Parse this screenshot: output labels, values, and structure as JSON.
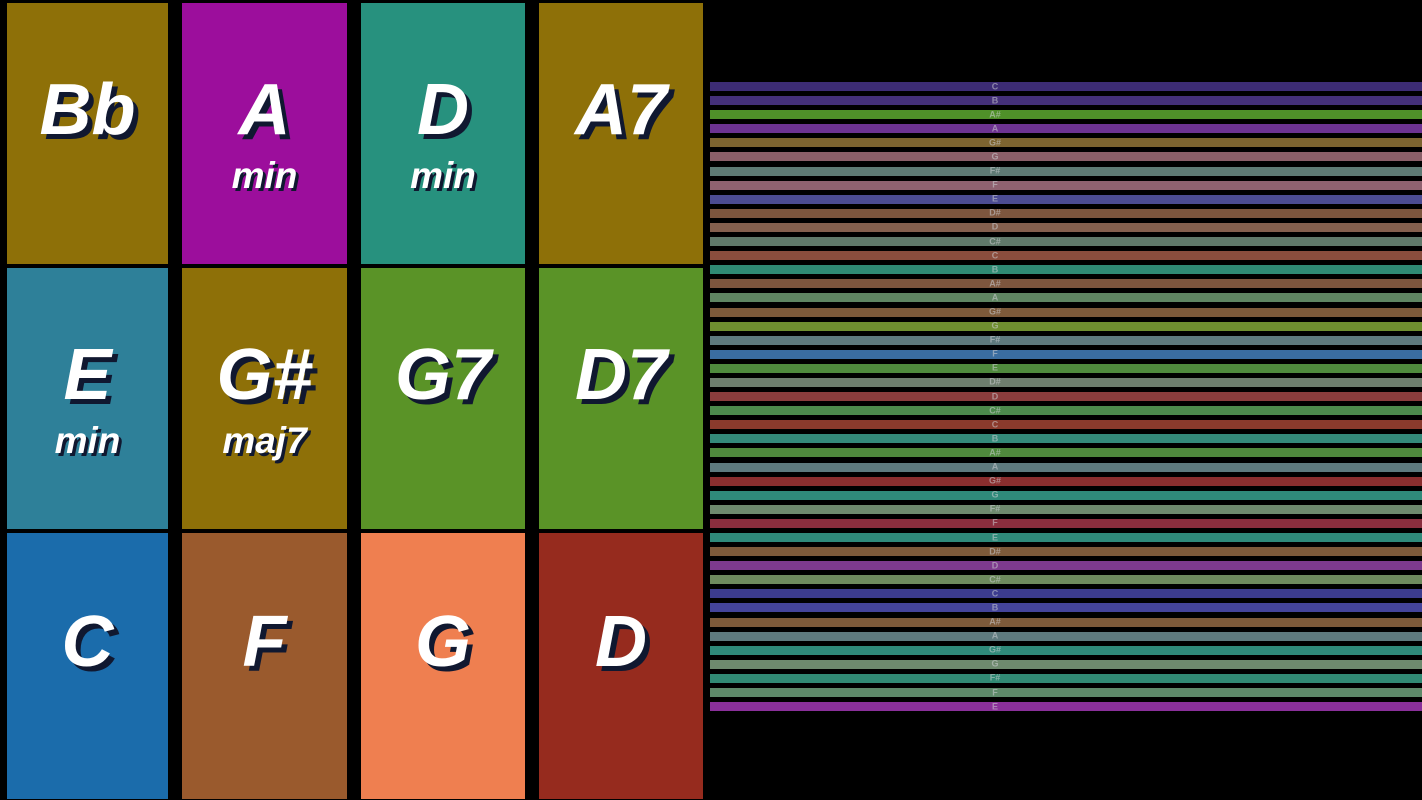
{
  "app": {
    "background_color": "#000000",
    "pad_text_color": "#ffffff",
    "pad_shadow_color": "#101830"
  },
  "chord_pads": {
    "pads": [
      {
        "root": "Bb",
        "quality": "",
        "color": "#8e7008"
      },
      {
        "root": "A",
        "quality": "min",
        "color": "#9c0e9c"
      },
      {
        "root": "D",
        "quality": "min",
        "color": "#27917e"
      },
      {
        "root": "A7",
        "quality": "",
        "color": "#8e7008"
      },
      {
        "root": "E",
        "quality": "min",
        "color": "#2e8099"
      },
      {
        "root": "G#",
        "quality": "maj7",
        "color": "#8e7008"
      },
      {
        "root": "G7",
        "quality": "",
        "color": "#5a9327"
      },
      {
        "root": "D7",
        "quality": "",
        "color": "#5a9327"
      },
      {
        "root": "C",
        "quality": "",
        "color": "#1b6cab"
      },
      {
        "root": "F",
        "quality": "",
        "color": "#9a5a2d"
      },
      {
        "root": "G",
        "quality": "",
        "color": "#ef7f50"
      },
      {
        "root": "D",
        "quality": "",
        "color": "#962b1e"
      }
    ]
  },
  "strum_strings": {
    "label_color": "rgba(205,208,212,0.55)",
    "strings": [
      {
        "note": "C",
        "color": "#3d2c75"
      },
      {
        "note": "B",
        "color": "#443079"
      },
      {
        "note": "A#",
        "color": "#4f9029"
      },
      {
        "note": "A",
        "color": "#6d3392"
      },
      {
        "note": "G#",
        "color": "#7d6430"
      },
      {
        "note": "G",
        "color": "#8a5f68"
      },
      {
        "note": "F#",
        "color": "#5e7a74"
      },
      {
        "note": "F",
        "color": "#8f6270"
      },
      {
        "note": "E",
        "color": "#4c4c92"
      },
      {
        "note": "D#",
        "color": "#7d563e"
      },
      {
        "note": "D",
        "color": "#84604e"
      },
      {
        "note": "C#",
        "color": "#60796a"
      },
      {
        "note": "C",
        "color": "#8a4d3d"
      },
      {
        "note": "B",
        "color": "#2f8a74"
      },
      {
        "note": "A#",
        "color": "#7d563e"
      },
      {
        "note": "A",
        "color": "#5f8562"
      },
      {
        "note": "G#",
        "color": "#7d5a3a"
      },
      {
        "note": "G",
        "color": "#6f8f30"
      },
      {
        "note": "F#",
        "color": "#5e7a7e"
      },
      {
        "note": "F",
        "color": "#3a6da0"
      },
      {
        "note": "E",
        "color": "#4f8a3d"
      },
      {
        "note": "D#",
        "color": "#6e7e6e"
      },
      {
        "note": "D",
        "color": "#8a3d3d"
      },
      {
        "note": "C#",
        "color": "#4c8a4c"
      },
      {
        "note": "C",
        "color": "#8a3a2c"
      },
      {
        "note": "B",
        "color": "#348a7a"
      },
      {
        "note": "A#",
        "color": "#4f8a3d"
      },
      {
        "note": "A",
        "color": "#5e7a7e"
      },
      {
        "note": "G#",
        "color": "#8a2e2e"
      },
      {
        "note": "G",
        "color": "#2f8a7a"
      },
      {
        "note": "F#",
        "color": "#6e8a6e"
      },
      {
        "note": "F",
        "color": "#8a2e3e"
      },
      {
        "note": "E",
        "color": "#2f8a7a"
      },
      {
        "note": "D#",
        "color": "#7d5a3a"
      },
      {
        "note": "D",
        "color": "#7d3a8e"
      },
      {
        "note": "C#",
        "color": "#6e8a5e"
      },
      {
        "note": "C",
        "color": "#3c3c8e"
      },
      {
        "note": "B",
        "color": "#44449a"
      },
      {
        "note": "A#",
        "color": "#7d5a3a"
      },
      {
        "note": "A",
        "color": "#5e7a7e"
      },
      {
        "note": "G#",
        "color": "#2f8a7a"
      },
      {
        "note": "G",
        "color": "#6e8a6e"
      },
      {
        "note": "F#",
        "color": "#318a74"
      },
      {
        "note": "F",
        "color": "#5e8a6a"
      },
      {
        "note": "E",
        "color": "#8a309a"
      }
    ]
  }
}
